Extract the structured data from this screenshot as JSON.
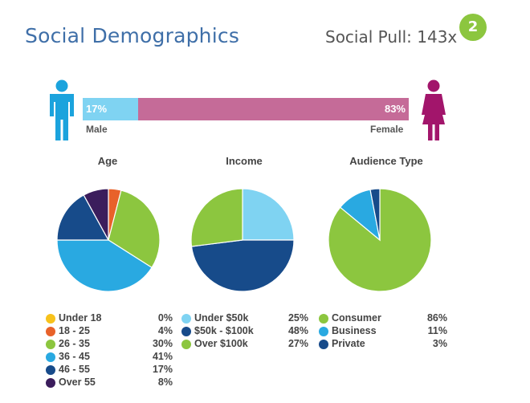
{
  "header": {
    "title": "Social Demographics",
    "pull_label": "Social Pull: 143x",
    "pull_badge": "2"
  },
  "gender": {
    "male_pct_label": "17%",
    "female_pct_label": "83%",
    "male_label": "Male",
    "female_label": "Female",
    "male_share": 0.17,
    "male_color": "#1ba3dd",
    "female_color": "#a2156b"
  },
  "chart_data": [
    {
      "type": "pie",
      "title": "Age",
      "labels": [
        "Under 18",
        "18 - 25",
        "26 - 35",
        "36 - 45",
        "46 - 55",
        "Over 55"
      ],
      "values": [
        0,
        4,
        30,
        41,
        17,
        8
      ],
      "value_labels": [
        "0%",
        "4%",
        "30%",
        "41%",
        "17%",
        "8%"
      ],
      "colors": [
        "#f7c21b",
        "#e8622a",
        "#8cc63f",
        "#29a9e1",
        "#174b8a",
        "#3b1d5c"
      ]
    },
    {
      "type": "pie",
      "title": "Income",
      "labels": [
        "Under $50k",
        "$50k - $100k",
        "Over $100k"
      ],
      "values": [
        25,
        48,
        27
      ],
      "value_labels": [
        "25%",
        "48%",
        "27%"
      ],
      "colors": [
        "#7fd3f2",
        "#174b8a",
        "#8cc63f"
      ]
    },
    {
      "type": "pie",
      "title": "Audience Type",
      "labels": [
        "Consumer",
        "Business",
        "Private"
      ],
      "values": [
        86,
        11,
        3
      ],
      "value_labels": [
        "86%",
        "11%",
        "3%"
      ],
      "colors": [
        "#8cc63f",
        "#29a9e1",
        "#174b8a"
      ]
    }
  ]
}
